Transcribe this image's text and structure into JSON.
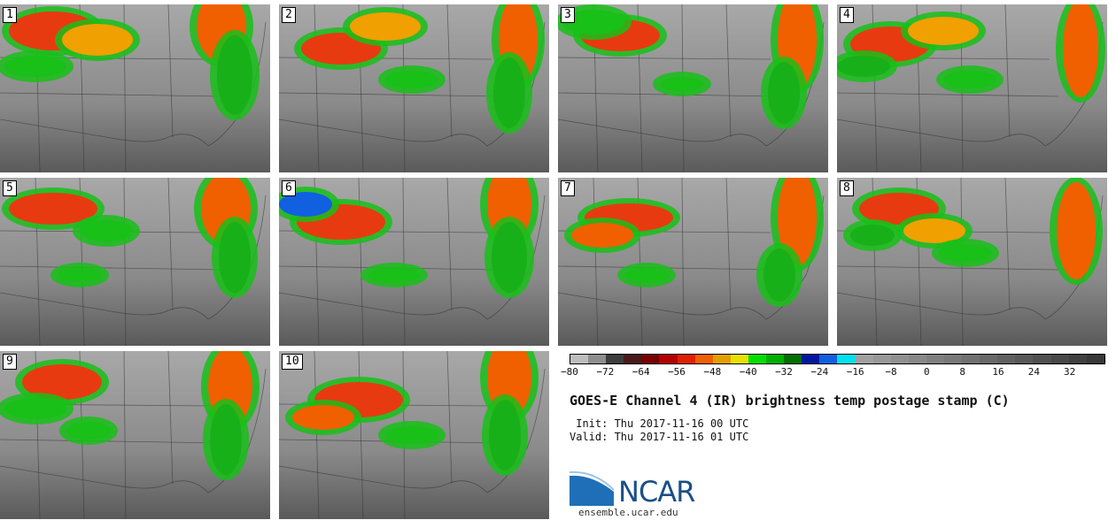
{
  "panels": [
    {
      "label": "1"
    },
    {
      "label": "2"
    },
    {
      "label": "3"
    },
    {
      "label": "4"
    },
    {
      "label": "5"
    },
    {
      "label": "6"
    },
    {
      "label": "7"
    },
    {
      "label": "8"
    },
    {
      "label": "9"
    },
    {
      "label": "10"
    }
  ],
  "colorbar": {
    "colors": [
      "#bdbdbd",
      "#8e8e8e",
      "#3d3d3d",
      "#4a1a1a",
      "#7a0000",
      "#b50000",
      "#e02000",
      "#f06000",
      "#e0a000",
      "#e8e000",
      "#00e000",
      "#00b000",
      "#007000",
      "#0018a0",
      "#1060e0",
      "#00e0f0",
      "#a0a0a0",
      "#989898",
      "#909090",
      "#888888",
      "#808080",
      "#787878",
      "#707070",
      "#686868",
      "#606060",
      "#585858",
      "#505050",
      "#484848",
      "#404040",
      "#383838"
    ],
    "tick_labels": [
      "−80",
      "−72",
      "−64",
      "−56",
      "−48",
      "−40",
      "−32",
      "−24",
      "−16",
      "−8",
      "0",
      "8",
      "16",
      "24",
      "32"
    ]
  },
  "title": "GOES-E Channel 4 (IR) brightness temp postage stamp (C)",
  "init": " Init: Thu 2017-11-16 00 UTC",
  "valid": "Valid: Thu 2017-11-16 01 UTC",
  "logo": {
    "name": "NCAR"
  },
  "site": "ensemble.ucar.edu"
}
